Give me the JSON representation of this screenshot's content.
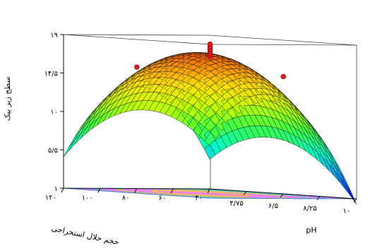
{
  "chart_data": {
    "type": "surface",
    "title": "",
    "zlabel": "سطح زیر پیک",
    "xlabel": "pH",
    "ylabel": "حجم حلال استخراجی",
    "x_ticks": [
      "۴/۷۵",
      "۶/۵",
      "۸/۲۵",
      "۱۰"
    ],
    "x_range": [
      3,
      10
    ],
    "y_ticks": [
      "۴۰",
      "۶۰",
      "۸۰",
      "۱۰۰",
      "۱۲۰"
    ],
    "y_range": [
      40,
      120
    ],
    "z_ticks": [
      "۱",
      "۵/۵",
      "۱۰",
      "۱۴/۵",
      "۱۹"
    ],
    "z_range": [
      1,
      19
    ],
    "surface_model": {
      "form": "quadratic",
      "peak_x": 6.4,
      "peak_y": 84,
      "peak_z": 17.5,
      "z_at_corners": {
        "x3_y40": 1.0,
        "x10_y40": 4.0,
        "x3_y120": 7.5,
        "x10_y120": 2.5
      }
    },
    "design_points": [
      {
        "x": 6.5,
        "y": 80,
        "z": 17.0
      },
      {
        "x": 6.5,
        "y": 80,
        "z": 17.3
      },
      {
        "x": 6.5,
        "y": 80,
        "z": 17.6
      },
      {
        "x": 6.5,
        "y": 80,
        "z": 17.9
      },
      {
        "x": 6.5,
        "y": 80,
        "z": 18.2
      },
      {
        "x": 6.5,
        "y": 80,
        "z": 18.5
      },
      {
        "x": 4.75,
        "y": 100,
        "z": 15.5
      },
      {
        "x": 8.25,
        "y": 60,
        "z": 15.0
      }
    ],
    "floor_color": "#ee82ee",
    "colormap": [
      "#0000ff",
      "#00a0ff",
      "#00ffc0",
      "#40ff40",
      "#c0ff00",
      "#ffe000",
      "#ff8000",
      "#ff2000"
    ],
    "grid": false
  }
}
